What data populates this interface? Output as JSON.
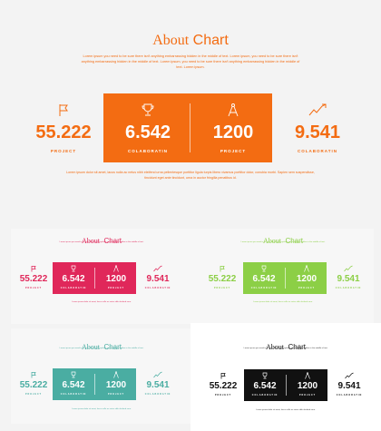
{
  "main": {
    "title_a": "About",
    "title_b": "Chart",
    "intro": "Lorem ipsum you need to be sure there isn't anything embarrassing hidden in the middle of text. Lorem ipsum, you need to be sure there isn't anything embarrassing hidden in the middle of text. Lorem ipsum, you need to be sure there isn't anything embarrassing hidden in the middle of text. Lorem ipsum.",
    "outro": "Lorem ipsum dolor sit amet, lacus nulla ac netus nibh eleifend urna pellentesque porttitor ligula turpis libero vivamus porttitor dolor, conubia morbi. Sapien sem suspendisse, tincidunt eget ante tincidunt, urna in auctor fringilla penatibus id.",
    "stats": [
      {
        "value": "55.222",
        "label": "PROJECT",
        "icon": "flag-icon"
      },
      {
        "value": "6.542",
        "label": "COLABORATIN",
        "icon": "trophy-icon"
      },
      {
        "value": "1200",
        "label": "PROJECT",
        "icon": "compass-icon"
      },
      {
        "value": "9.541",
        "label": "COLABORATIN",
        "icon": "chart-line-icon"
      }
    ]
  },
  "variants": [
    {
      "theme": "crimson",
      "accent": "#e0275a",
      "title_a": "About",
      "title_b": "Chart",
      "intro": "Lorem ipsum you need to be sure there isn't anything embarrassing hidden in the middle of text.",
      "outro": "Lorem ipsum dolor sit amet, lacus nulla ac netus nibh eleifend urna.",
      "stats": [
        {
          "value": "55.222",
          "label": "PROJECT"
        },
        {
          "value": "6.542",
          "label": "COLABORATIN"
        },
        {
          "value": "1200",
          "label": "PROJECT"
        },
        {
          "value": "9.541",
          "label": "COLABORATIN"
        }
      ]
    },
    {
      "theme": "lime",
      "accent": "#8ccf46",
      "title_a": "About",
      "title_b": "Chart",
      "intro": "Lorem ipsum you need to be sure there isn't anything embarrassing hidden in the middle of text.",
      "outro": "Lorem ipsum dolor sit amet, lacus nulla ac netus nibh eleifend urna.",
      "stats": [
        {
          "value": "55.222",
          "label": "PROJECT"
        },
        {
          "value": "6.542",
          "label": "COLABORATIN"
        },
        {
          "value": "1200",
          "label": "PROJECT"
        },
        {
          "value": "9.541",
          "label": "COLABORATIN"
        }
      ]
    },
    {
      "theme": "teal",
      "accent": "#4aada2",
      "title_a": "About",
      "title_b": "Chart",
      "intro": "Lorem ipsum you need to be sure there isn't anything embarrassing hidden in the middle of text.",
      "outro": "Lorem ipsum dolor sit amet, lacus nulla ac netus nibh eleifend urna.",
      "stats": [
        {
          "value": "55.222",
          "label": "PROJECT"
        },
        {
          "value": "6.542",
          "label": "COLABORATIN"
        },
        {
          "value": "1200",
          "label": "PROJECT"
        },
        {
          "value": "9.541",
          "label": "COLABORATIN"
        }
      ]
    },
    {
      "theme": "black",
      "accent": "#111111",
      "title_a": "About",
      "title_b": "Chart",
      "intro": "Lorem ipsum you need to be sure there isn't anything embarrassing hidden in the middle of text.",
      "outro": "Lorem ipsum dolor sit amet, lacus nulla ac netus nibh eleifend urna.",
      "stats": [
        {
          "value": "55.222",
          "label": "PROJECT"
        },
        {
          "value": "6.542",
          "label": "COLABORATIN"
        },
        {
          "value": "1200",
          "label": "PROJECT"
        },
        {
          "value": "9.541",
          "label": "COLABORATIN"
        }
      ]
    }
  ],
  "colors": {
    "main_accent": "#f36c12",
    "page_bg": "#f3f3f3"
  }
}
